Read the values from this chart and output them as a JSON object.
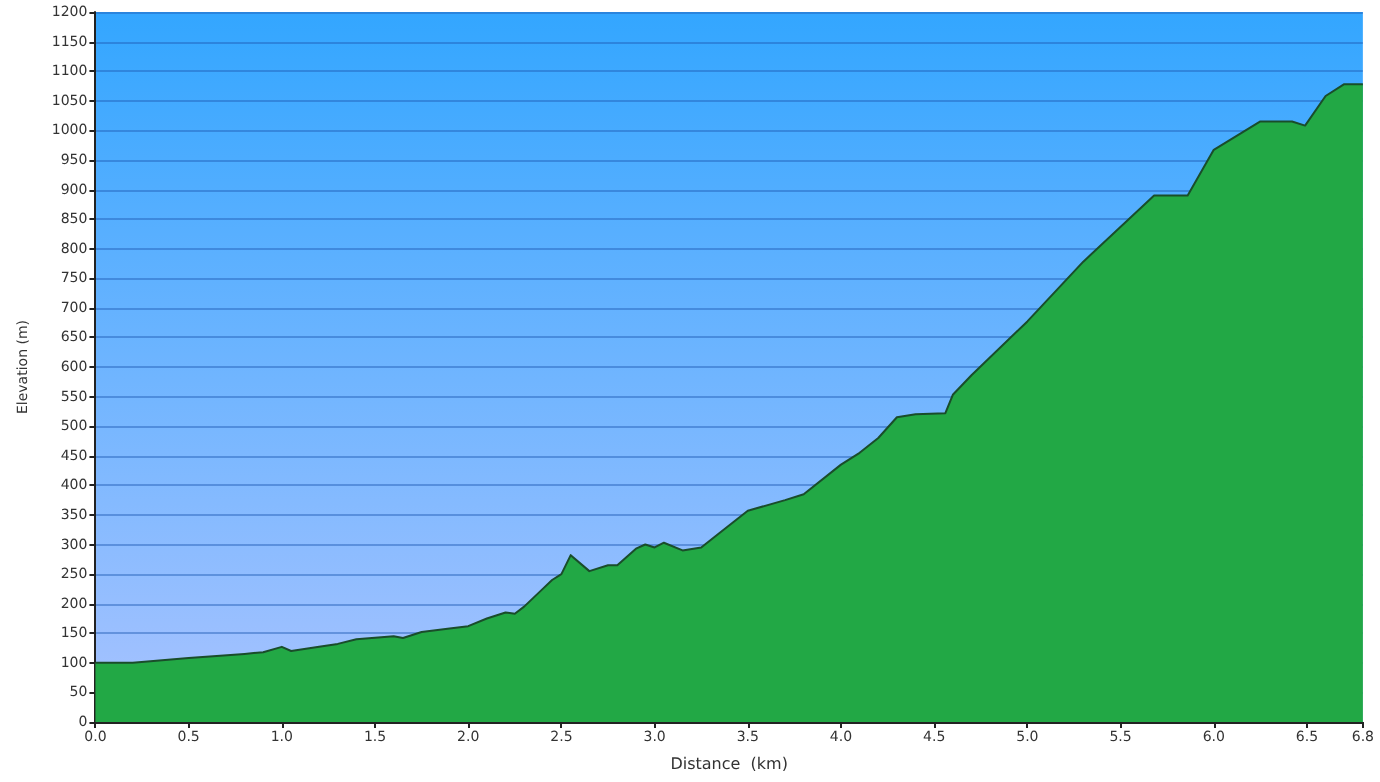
{
  "chart_data": {
    "type": "area",
    "xlabel": "Distance  (km)",
    "ylabel": "Elevation (m)",
    "x": [
      0,
      0.2,
      0.5,
      0.8,
      0.9,
      1.0,
      1.05,
      1.2,
      1.3,
      1.4,
      1.6,
      1.65,
      1.75,
      1.9,
      2.0,
      2.1,
      2.2,
      2.25,
      2.3,
      2.4,
      2.45,
      2.5,
      2.55,
      2.65,
      2.75,
      2.8,
      2.9,
      2.95,
      3.0,
      3.05,
      3.15,
      3.25,
      3.35,
      3.5,
      3.7,
      3.8,
      4.0,
      4.1,
      4.2,
      4.3,
      4.4,
      4.56,
      4.6,
      4.7,
      5.0,
      5.3,
      5.68,
      5.86,
      6.0,
      6.25,
      6.42,
      6.49,
      6.6,
      6.7,
      6.8
    ],
    "series": [
      {
        "color": "#22a845",
        "values": [
          100,
          100,
          108,
          115,
          118,
          127,
          120,
          127,
          132,
          140,
          145,
          142,
          152,
          158,
          162,
          175,
          185,
          183,
          195,
          225,
          240,
          250,
          282,
          255,
          265,
          265,
          293,
          300,
          295,
          303,
          290,
          295,
          320,
          357,
          375,
          385,
          435,
          455,
          480,
          515,
          520,
          522,
          553,
          586,
          677,
          778,
          890,
          890,
          967,
          1015,
          1015,
          1008,
          1058,
          1078,
          1078
        ]
      }
    ],
    "xlim": [
      0,
      6.8
    ],
    "ylim": [
      0,
      1200
    ],
    "xticks": [
      {
        "value": 0,
        "label": "0.0"
      },
      0.5,
      {
        "value": 1,
        "label": "1.0"
      },
      1.5,
      {
        "value": 2,
        "label": "2.0"
      },
      2.5,
      {
        "value": 3,
        "label": "3.0"
      },
      3.5,
      {
        "value": 4,
        "label": "4.0"
      },
      4.5,
      {
        "value": 5,
        "label": "5.0"
      },
      5.5,
      {
        "value": 6,
        "label": "6.0"
      },
      6.5,
      6.8
    ],
    "yticks": [
      0,
      50,
      100,
      150,
      200,
      250,
      300,
      350,
      400,
      450,
      500,
      550,
      600,
      650,
      700,
      750,
      800,
      850,
      900,
      950,
      1000,
      1050,
      1100,
      1150,
      1200
    ],
    "grid": "y",
    "marker": "none",
    "line_style": "solid"
  }
}
